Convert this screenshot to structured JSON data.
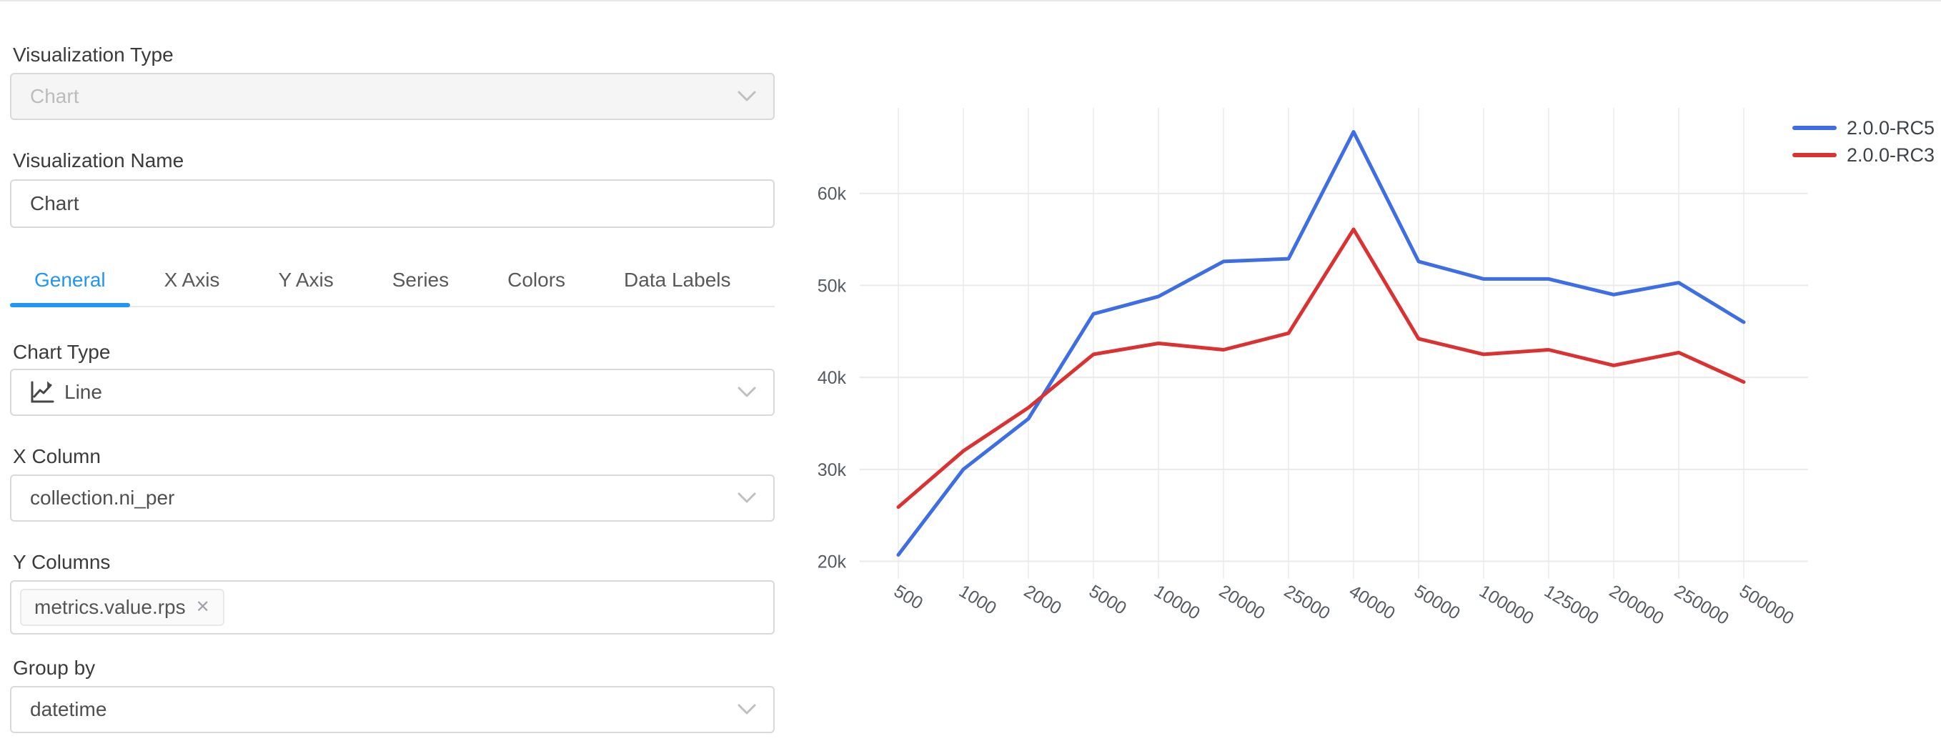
{
  "panel": {
    "visualization_type": {
      "label": "Visualization Type",
      "value": "Chart"
    },
    "visualization_name": {
      "label": "Visualization Name",
      "value": "Chart"
    },
    "tabs": [
      "General",
      "X Axis",
      "Y Axis",
      "Series",
      "Colors",
      "Data Labels"
    ],
    "active_tab": "General",
    "chart_type": {
      "label": "Chart Type",
      "value": "Line"
    },
    "x_column": {
      "label": "X Column",
      "value": "collection.ni_per"
    },
    "y_columns": {
      "label": "Y Columns",
      "tag": "metrics.value.rps",
      "remove_icon": "✕"
    },
    "group_by": {
      "label": "Group by",
      "value": "datetime"
    }
  },
  "chart_data": {
    "type": "line",
    "title": "",
    "xlabel": "",
    "ylabel": "",
    "categories": [
      "500",
      "1000",
      "2000",
      "5000",
      "10000",
      "20000",
      "25000",
      "40000",
      "50000",
      "100000",
      "125000",
      "200000",
      "250000",
      "500000"
    ],
    "series": [
      {
        "name": "2.0.0-RC5",
        "color": "#3D6EE6",
        "values": [
          20700,
          30000,
          35500,
          46900,
          48800,
          52600,
          52900,
          66700,
          52600,
          50700,
          50700,
          49000,
          50300,
          46000
        ]
      },
      {
        "name": "2.0.0-RC3",
        "color": "#DC3131",
        "values": [
          25900,
          32000,
          36700,
          42500,
          43700,
          43000,
          44800,
          56100,
          44200,
          42500,
          43000,
          41300,
          42700,
          39500
        ]
      }
    ],
    "y_ticks": [
      {
        "label": "20k",
        "value": 20000
      },
      {
        "label": "30k",
        "value": 30000
      },
      {
        "label": "40k",
        "value": 40000
      },
      {
        "label": "50k",
        "value": 50000
      },
      {
        "label": "60k",
        "value": 60000
      }
    ],
    "ylim": [
      18100,
      69300
    ],
    "grid": true,
    "legend_position": "top-right",
    "x_tick_angle": 31
  },
  "colors": {
    "accent": "#2196f3",
    "series_blue": "#3D6EE6",
    "series_red": "#DC3131"
  }
}
